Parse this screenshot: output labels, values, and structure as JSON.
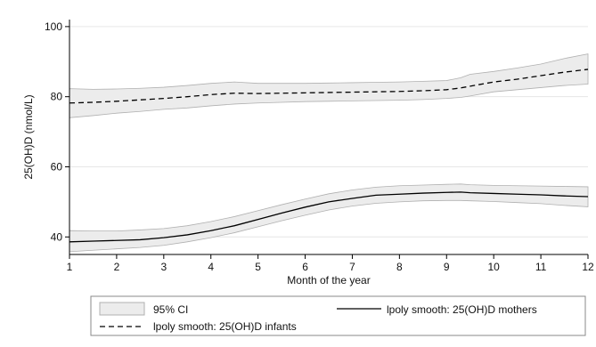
{
  "chart_data": {
    "type": "line",
    "xlabel": "Month of the year",
    "ylabel": "25(OH)D (nmol/L)",
    "xlim": [
      1,
      12
    ],
    "ylim": [
      35,
      102
    ],
    "x_ticks": [
      "1",
      "2",
      "3",
      "4",
      "5",
      "6",
      "7",
      "8",
      "9",
      "10",
      "11",
      "12"
    ],
    "y_ticks": [
      "40",
      "60",
      "80",
      "100"
    ],
    "grid": "horizontal",
    "legend_position": "bottom",
    "series": [
      {
        "name": "lpoly smooth: 25(OH)D infants",
        "style": "dashed",
        "x": [
          1,
          1.5,
          2,
          2.5,
          3,
          3.5,
          4,
          4.5,
          5,
          5.5,
          6,
          6.5,
          7,
          7.5,
          8,
          8.5,
          9,
          9.3,
          9.5,
          10,
          10.5,
          11,
          11.5,
          12
        ],
        "y": [
          78.2,
          78.4,
          78.7,
          79.1,
          79.5,
          80.0,
          80.6,
          81.0,
          80.9,
          81.0,
          81.1,
          81.2,
          81.3,
          81.4,
          81.5,
          81.7,
          82.0,
          82.5,
          83.0,
          84.2,
          85.0,
          86.0,
          87.0,
          87.8
        ],
        "ci_lower": [
          74.0,
          74.6,
          75.3,
          75.8,
          76.4,
          76.8,
          77.4,
          77.9,
          78.2,
          78.4,
          78.6,
          78.7,
          78.8,
          78.9,
          79.0,
          79.2,
          79.5,
          79.8,
          80.2,
          81.4,
          82.0,
          82.6,
          83.2,
          83.6
        ],
        "ci_upper": [
          82.3,
          82.1,
          82.2,
          82.4,
          82.7,
          83.2,
          83.8,
          84.2,
          83.8,
          83.8,
          83.8,
          83.9,
          84.0,
          84.1,
          84.2,
          84.4,
          84.6,
          85.4,
          86.4,
          87.2,
          88.2,
          89.3,
          90.9,
          92.2
        ]
      },
      {
        "name": "lpoly smooth: 25(OH)D mothers",
        "style": "solid",
        "x": [
          1,
          1.5,
          2,
          2.5,
          3,
          3.5,
          4,
          4.5,
          5,
          5.5,
          6,
          6.5,
          7,
          7.5,
          8,
          8.5,
          9,
          9.3,
          9.5,
          10,
          10.5,
          11,
          11.5,
          12
        ],
        "y": [
          38.6,
          38.8,
          39.0,
          39.2,
          39.8,
          40.6,
          41.8,
          43.2,
          45.0,
          46.8,
          48.5,
          50.0,
          51.0,
          51.9,
          52.2,
          52.5,
          52.7,
          52.8,
          52.6,
          52.4,
          52.2,
          52.0,
          51.7,
          51.5
        ],
        "ci_lower": [
          35.8,
          36.2,
          36.6,
          37.0,
          37.6,
          38.6,
          39.8,
          41.2,
          42.9,
          44.6,
          46.2,
          47.7,
          48.8,
          49.6,
          50.0,
          50.3,
          50.4,
          50.4,
          50.3,
          50.1,
          49.8,
          49.5,
          49.0,
          48.6
        ],
        "ci_upper": [
          41.8,
          41.7,
          41.7,
          42.0,
          42.4,
          43.2,
          44.4,
          45.8,
          47.5,
          49.2,
          50.8,
          52.3,
          53.4,
          54.2,
          54.6,
          54.8,
          55.0,
          55.1,
          54.9,
          54.7,
          54.6,
          54.5,
          54.4,
          54.3
        ]
      }
    ],
    "legend": [
      {
        "label": "95% CI",
        "kind": "band"
      },
      {
        "label": "lpoly smooth: 25(OH)D mothers",
        "kind": "solid"
      },
      {
        "label": "lpoly smooth: 25(OH)D infants",
        "kind": "dashed"
      }
    ],
    "colors": {
      "line": "#000000",
      "band_fill": "#ececec",
      "band_stroke": "#b0b0b0",
      "grid": "#e6e6e6",
      "axis": "#000000"
    }
  }
}
